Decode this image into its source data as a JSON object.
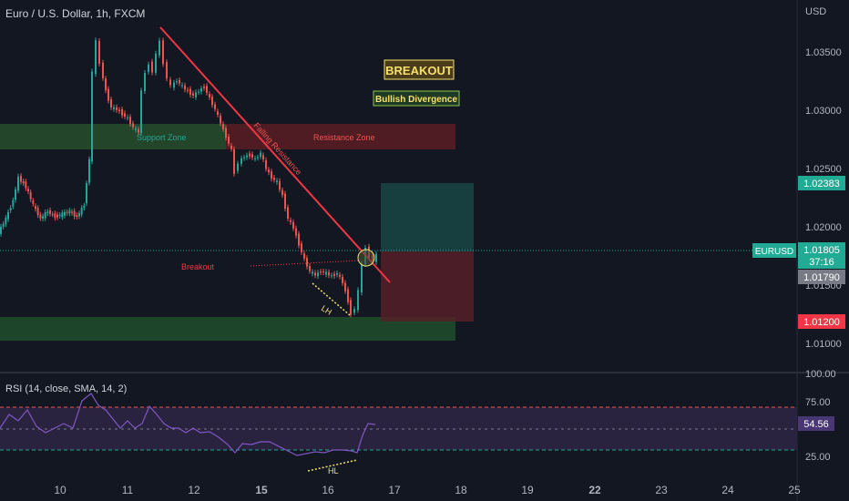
{
  "header": {
    "symbol_title": "Euro / U.S. Dollar, 1h, FXCM",
    "rsi_title": "RSI (14, close, SMA, 14, 2)"
  },
  "axis": {
    "currency": "USD",
    "price_ticks": [
      "1.03500",
      "1.03000",
      "1.02500",
      "1.02000",
      "1.01500",
      "1.01000"
    ],
    "rsi_ticks": [
      "100.00",
      "75.00",
      "25.00"
    ],
    "date_ticks": [
      "10",
      "11",
      "12",
      "15",
      "16",
      "17",
      "18",
      "19",
      "22",
      "23",
      "24",
      "25"
    ]
  },
  "price_labels": {
    "take_profit": "1.02383",
    "symbol": "EURUSD",
    "last_price": "1.01805",
    "countdown": "37:16",
    "entry": "1.01790",
    "stop_loss": "1.01200",
    "rsi_value": "54.56"
  },
  "annotations": {
    "breakout_box": "BREAKOUT",
    "bullish_divergence": "Bullish Divergence",
    "support_zone": "Support Zone",
    "resistance_zone": "Resistance Zone",
    "falling_resistance": "Falling Resistance",
    "breakout_text": "Breakout",
    "lh": "LH",
    "hl": "HL"
  },
  "colors": {
    "background": "#131722",
    "bull": "#26a69a",
    "bear": "#ef5350",
    "rsi_line": "#7e57c2",
    "rsi_band": "#2a2340",
    "resistance_zone": "#5c1d24",
    "support_zone": "#1e4a2a",
    "text": "#b2b5be",
    "yellow": "#f5e16b"
  },
  "chart_data": {
    "type": "candlestick",
    "price_range": [
      1.0085,
      1.0384
    ],
    "rsi_range": [
      0,
      100
    ],
    "zones": {
      "resistance": [
        1.0265,
        1.0287
      ],
      "support": [
        1.011,
        1.013
      ],
      "take_profit": 1.02383,
      "entry": 1.0179,
      "stop_loss": 1.012
    },
    "rsi_levels": [
      70,
      50,
      30
    ]
  }
}
